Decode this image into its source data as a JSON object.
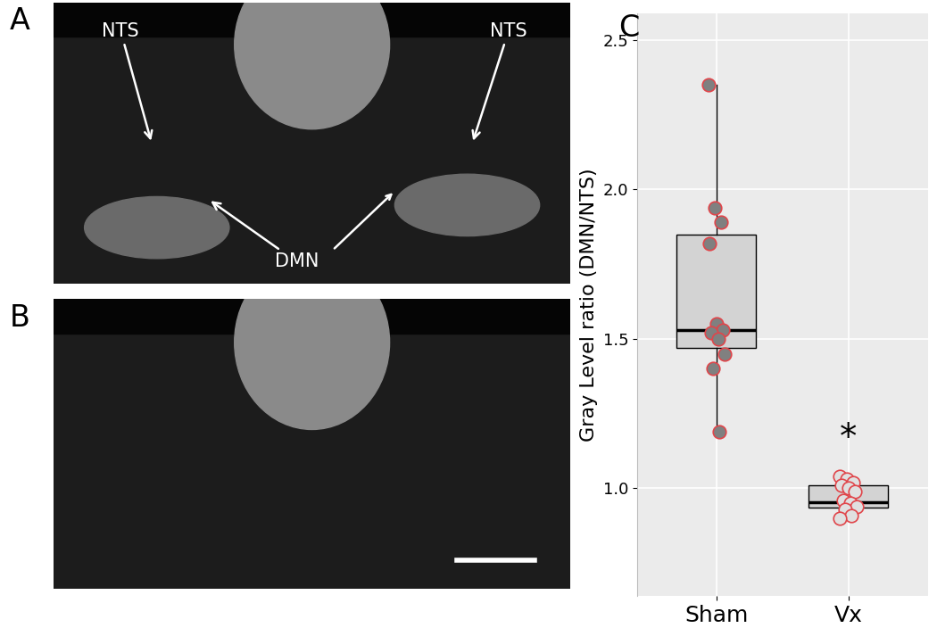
{
  "chart_data": {
    "type": "box",
    "panel_label": "C",
    "y_label": "Gray Level ratio (DMN/NTS)",
    "categories": [
      "Sham",
      "Vx"
    ],
    "points": [
      [
        2.35,
        1.94,
        1.89,
        1.82,
        1.55,
        1.53,
        1.52,
        1.5,
        1.45,
        1.4,
        1.19
      ],
      [
        1.04,
        1.03,
        1.02,
        1.01,
        1.0,
        0.99,
        0.96,
        0.95,
        0.94,
        0.93,
        0.91,
        0.9
      ]
    ],
    "q1": [
      1.47,
      0.935
    ],
    "median": [
      1.53,
      0.955
    ],
    "q3": [
      1.85,
      1.01
    ],
    "whisker_low": [
      1.19,
      0.9
    ],
    "whisker_high": [
      2.35,
      1.04
    ],
    "ylim": [
      0.64,
      2.59
    ],
    "yticks": [
      {
        "value": 1.0,
        "label": "1.0"
      },
      {
        "value": 1.5,
        "label": "1.5"
      },
      {
        "value": 2.0,
        "label": "2.0"
      },
      {
        "value": 2.5,
        "label": "2.5"
      }
    ],
    "grid": true,
    "color": "#d3d3d3",
    "marker": "o",
    "point_colors": [
      "#808080",
      "#e0e0e0"
    ],
    "point_edge_color": "#e0454a",
    "annotations": [
      {
        "text": "*",
        "category": "Vx",
        "y": 1.17
      }
    ]
  },
  "image_panels": [
    {
      "panel_label": "A",
      "labels": {
        "NTS": "NTS",
        "DMN": "DMN"
      }
    },
    {
      "panel_label": "B"
    }
  ]
}
